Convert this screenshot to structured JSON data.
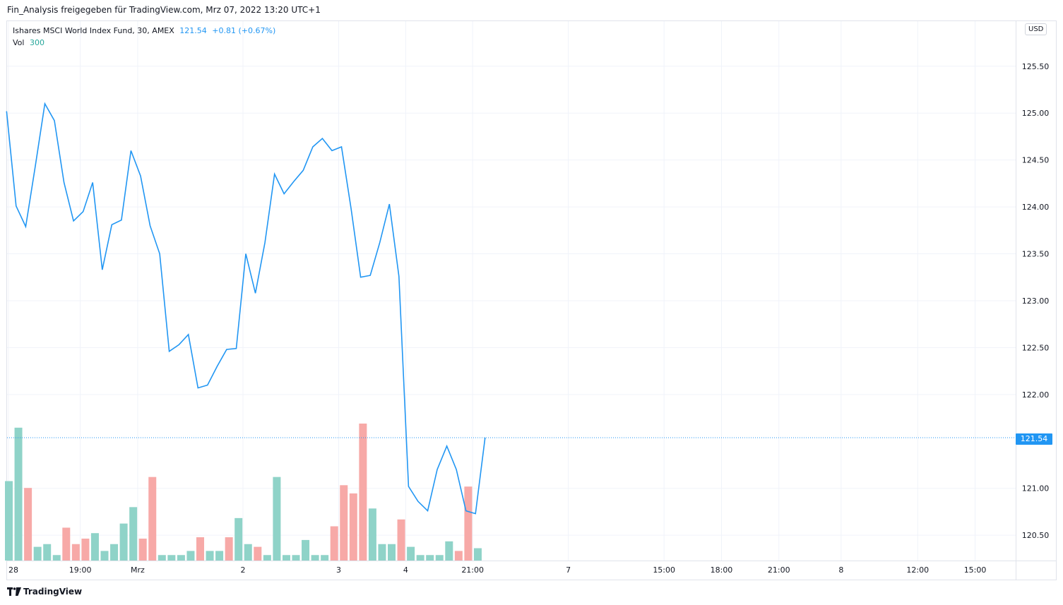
{
  "header": {
    "shared_by": "Fin_Analysis freigegeben für TradingView.com, Mrz 07, 2022 13:20 UTC+1"
  },
  "legend": {
    "symbol_line": "Ishares MSCI World Index Fund, 30, AMEX",
    "last": "121.54",
    "change": "+0.81 (+0.67%)",
    "vol_label": "Vol",
    "vol_value": "300"
  },
  "currency": "USD",
  "last_price_tag": "121.54",
  "footer": {
    "brand": "TradingView"
  },
  "colors": {
    "line": "#2196f3",
    "vol_up": "#8fd3c8",
    "vol_down": "#f7a9a7",
    "grid": "#f0f3fa"
  },
  "chart_data": {
    "type": "line",
    "yaxis": {
      "ticks": [
        125.5,
        125.0,
        124.5,
        124.0,
        123.5,
        123.0,
        122.5,
        122.0,
        121.0,
        120.5
      ],
      "range": [
        120.23,
        125.98
      ]
    },
    "xaxis": {
      "ticks": [
        {
          "label": "28",
          "bar": 0
        },
        {
          "label": "19:00",
          "bar": 7.5
        },
        {
          "label": "Mrz",
          "bar": 13.5
        },
        {
          "label": "2",
          "bar": 24.5
        },
        {
          "label": "3",
          "bar": 34.5
        },
        {
          "label": "4",
          "bar": 41.5
        },
        {
          "label": "21:00",
          "bar": 48.5
        },
        {
          "label": "7",
          "bar": 58.5
        },
        {
          "label": "15:00",
          "bar": 68.5
        },
        {
          "label": "18:00",
          "bar": 74.5
        },
        {
          "label": "21:00",
          "bar": 80.5
        },
        {
          "label": "8",
          "bar": 87
        },
        {
          "label": "12:00",
          "bar": 95
        },
        {
          "label": "15:00",
          "bar": 101
        }
      ]
    },
    "series": [
      {
        "values": [
          125.02,
          124.01,
          123.79,
          124.43,
          125.1,
          124.92,
          124.26,
          123.85,
          123.95,
          124.26,
          123.33,
          123.81,
          123.86,
          124.6,
          124.33,
          123.8,
          123.5,
          122.46,
          122.53,
          122.64,
          122.07,
          122.1,
          122.3,
          122.48,
          122.49,
          123.5,
          123.08,
          123.62,
          124.35,
          124.14,
          124.27,
          124.39,
          124.64,
          124.73,
          124.6,
          124.64,
          123.98,
          123.25,
          123.27,
          123.62,
          124.03,
          123.26,
          121.02,
          120.86,
          120.76,
          121.2,
          121.45,
          121.2,
          120.76,
          120.73,
          121.54
        ]
      }
    ],
    "volume": {
      "values": [
        0.58,
        0.97,
        0.53,
        0.1,
        0.12,
        0.04,
        0.24,
        0.12,
        0.16,
        0.2,
        0.07,
        0.12,
        0.27,
        0.39,
        0.16,
        0.61,
        0.04,
        0.04,
        0.04,
        0.07,
        0.17,
        0.07,
        0.07,
        0.17,
        0.31,
        0.12,
        0.1,
        0.04,
        0.61,
        0.04,
        0.04,
        0.15,
        0.04,
        0.04,
        0.25,
        0.55,
        0.49,
        1.0,
        0.38,
        0.12,
        0.12,
        0.3,
        0.1,
        0.04,
        0.04,
        0.04,
        0.14,
        0.07,
        0.54,
        0.09
      ],
      "direction": [
        "up",
        "up",
        "down",
        "up",
        "up",
        "up",
        "down",
        "down",
        "down",
        "up",
        "up",
        "up",
        "up",
        "up",
        "down",
        "down",
        "up",
        "up",
        "up",
        "up",
        "down",
        "up",
        "up",
        "down",
        "up",
        "up",
        "down",
        "up",
        "up",
        "up",
        "up",
        "up",
        "up",
        "up",
        "down",
        "down",
        "down",
        "down",
        "up",
        "up",
        "up",
        "down",
        "up",
        "up",
        "up",
        "up",
        "up",
        "down",
        "down",
        "up"
      ]
    }
  }
}
